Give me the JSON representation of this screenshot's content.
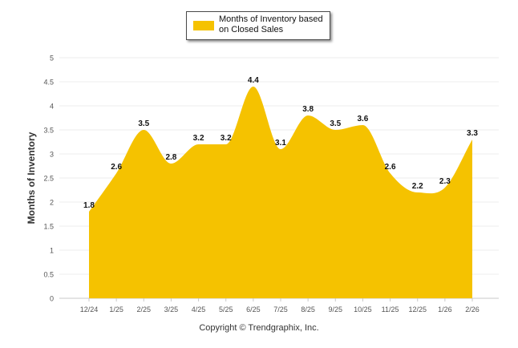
{
  "legend": {
    "label": "Months of Inventory based\non Closed Sales",
    "color": "#F5C200"
  },
  "copyright": "Copyright © Trendgraphix, Inc.",
  "chart_data": {
    "type": "area",
    "title": "",
    "xlabel": "",
    "ylabel": "Months of Inventory",
    "categories": [
      "12/24",
      "1/25",
      "2/25",
      "3/25",
      "4/25",
      "5/25",
      "6/25",
      "7/25",
      "8/25",
      "9/25",
      "10/25",
      "11/25",
      "12/25",
      "1/26",
      "2/26"
    ],
    "series": [
      {
        "name": "Months of Inventory based on Closed Sales",
        "values": [
          1.8,
          2.6,
          3.5,
          2.8,
          3.2,
          3.2,
          4.4,
          3.1,
          3.8,
          3.5,
          3.6,
          2.6,
          2.2,
          2.3,
          3.3
        ],
        "labels": [
          "1.8",
          "2.6",
          "3.5",
          "2.8",
          "3.2",
          "3.2",
          "4.4",
          "3.1",
          "3.8",
          "3.5",
          "3.6",
          "2.6",
          "2.2",
          "2.3",
          "3.3"
        ]
      }
    ],
    "ylim": [
      0,
      5
    ],
    "yticks": [
      "0",
      "0.5",
      "1",
      "1.5",
      "2",
      "2.5",
      "3",
      "3.5",
      "4",
      "4.5",
      "5"
    ],
    "grid": true,
    "legend_position": "top-center",
    "fill_color": "#F5C200",
    "smooth": true
  }
}
